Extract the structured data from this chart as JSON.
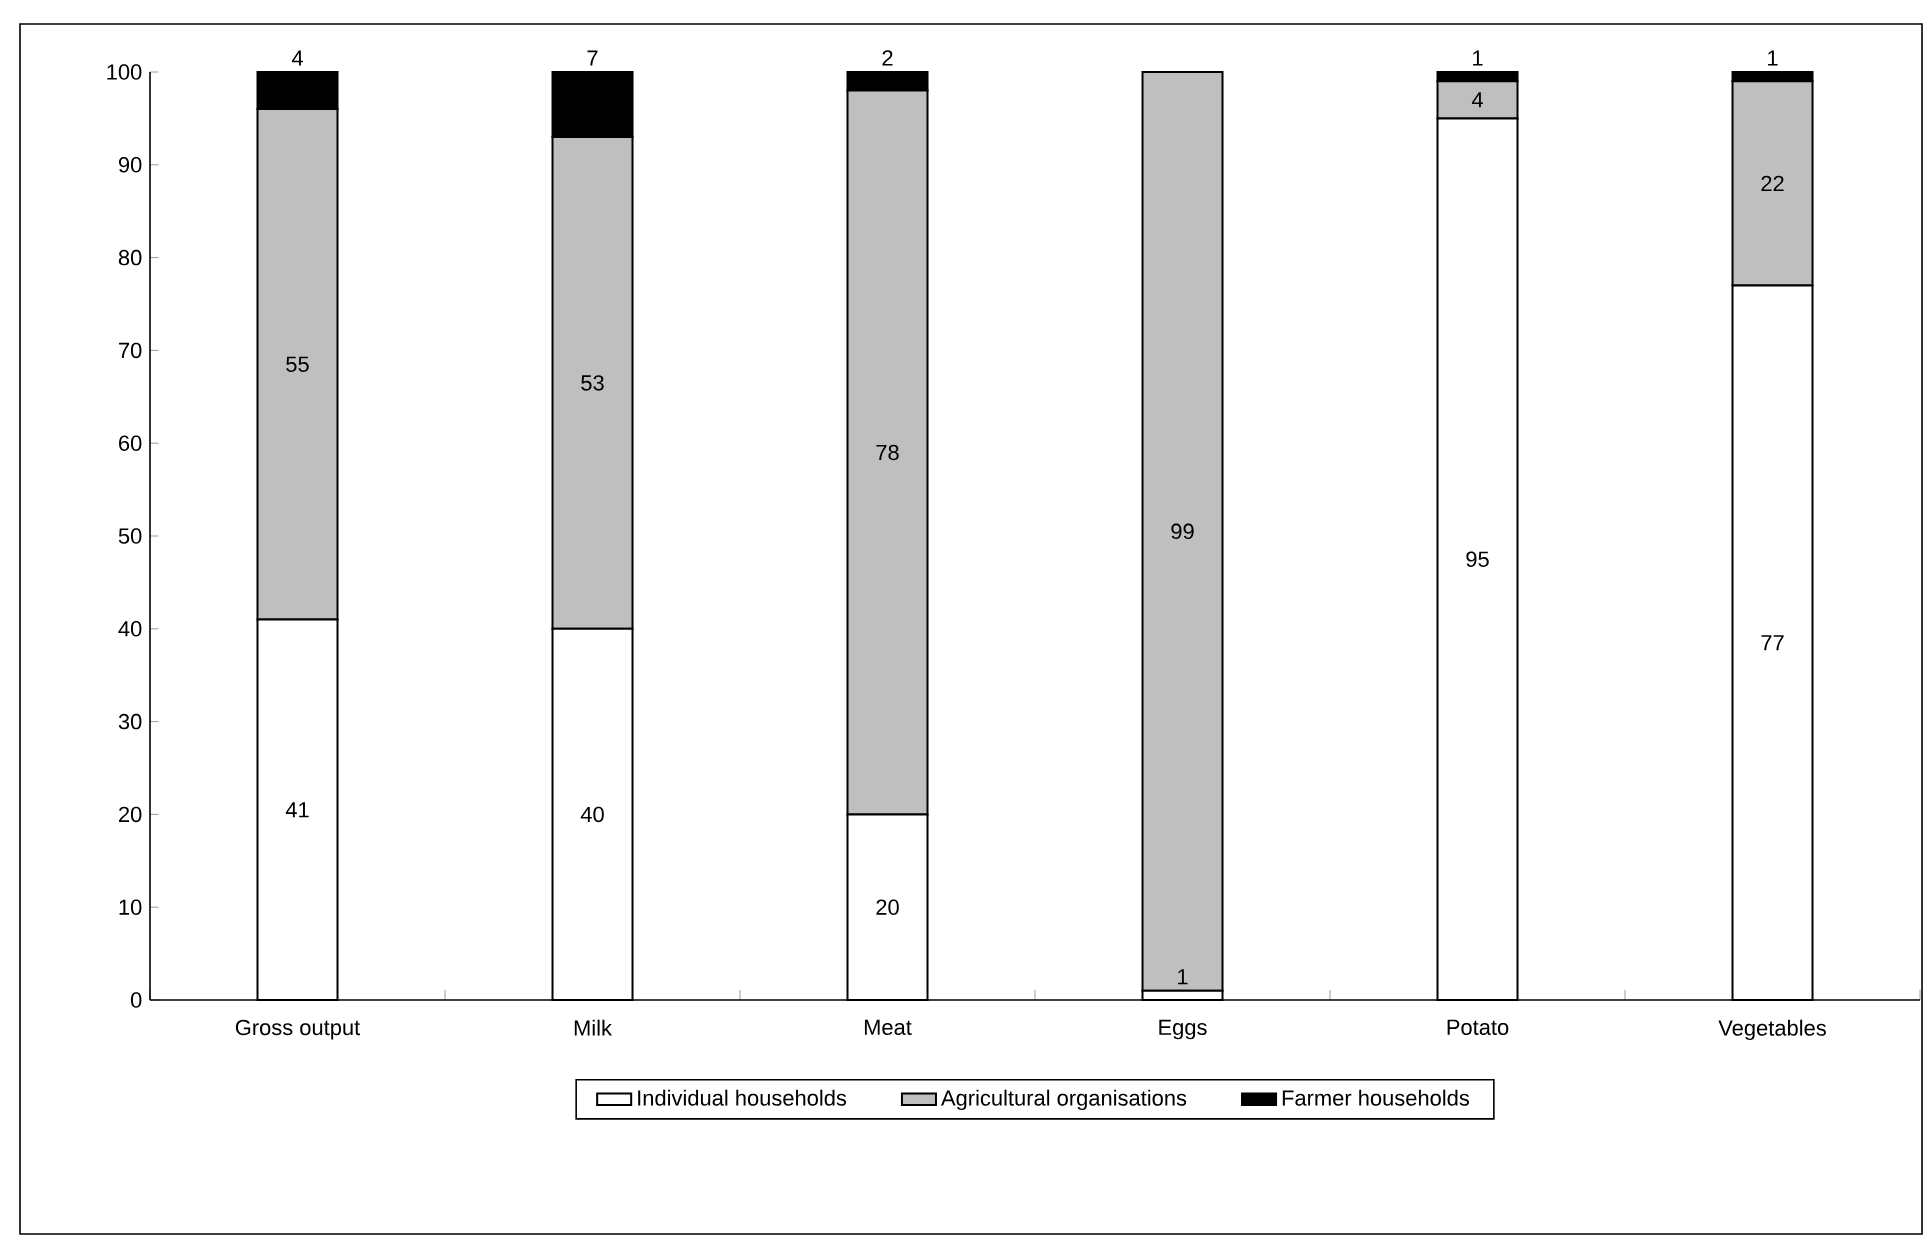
{
  "chart_data": {
    "type": "bar",
    "stacked": true,
    "categories": [
      "Gross output",
      "Milk",
      "Meat",
      "Eggs",
      "Potato",
      "Vegetables"
    ],
    "series": [
      {
        "name": "Individual households",
        "color": "#ffffff",
        "values": [
          41,
          40,
          20,
          1,
          95,
          77
        ],
        "value_labels": [
          "41",
          "40",
          "20",
          "1",
          "95",
          "77"
        ]
      },
      {
        "name": "Agricultural organisations",
        "color": "#bfbfbf",
        "values": [
          55,
          53,
          78,
          99,
          4,
          22
        ],
        "value_labels": [
          "55",
          "53",
          "78",
          "99",
          "4",
          "22"
        ]
      },
      {
        "name": "Farmer households",
        "color": "#000000",
        "values": [
          4,
          7,
          2,
          0,
          1,
          1
        ],
        "value_labels": [
          "4",
          "7",
          "2",
          null,
          "1",
          "1"
        ]
      }
    ],
    "ylim": [
      0,
      100
    ],
    "yticks": [
      0,
      10,
      20,
      30,
      40,
      50,
      60,
      70,
      80,
      90,
      100
    ],
    "legend": "bottom"
  }
}
